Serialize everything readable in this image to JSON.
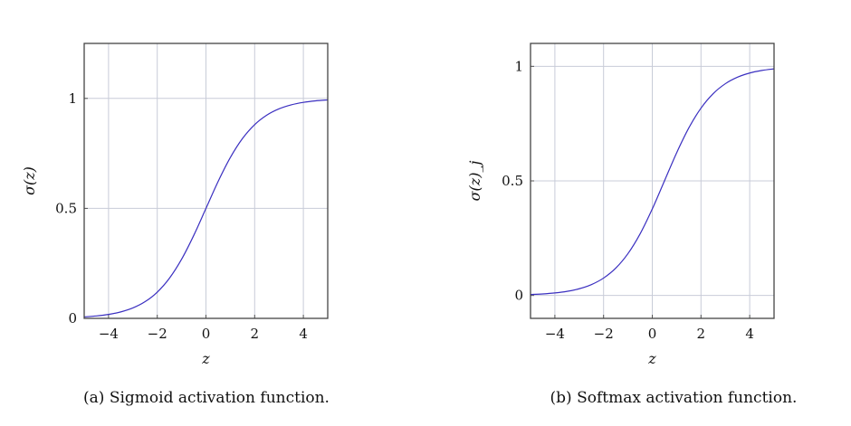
{
  "chart_data": [
    {
      "type": "line",
      "title": "",
      "caption": "(a) Sigmoid activation function.",
      "xlabel": "z",
      "ylabel": "σ(z)",
      "xlim": [
        -5,
        5
      ],
      "ylim": [
        0,
        1.25
      ],
      "xticks": [
        -4,
        -2,
        0,
        2,
        4
      ],
      "xtick_labels": [
        "−4",
        "−2",
        "0",
        "2",
        "4"
      ],
      "yticks": [
        0,
        0.5,
        1
      ],
      "ytick_labels": [
        "0",
        "0.5",
        "1"
      ],
      "grid": true,
      "series": [
        {
          "name": "sigmoid",
          "color": "#3a2fc0",
          "x": [
            -5,
            -4.5,
            -4,
            -3.5,
            -3,
            -2.5,
            -2,
            -1.5,
            -1,
            -0.5,
            0,
            0.5,
            1,
            1.5,
            2,
            2.5,
            3,
            3.5,
            4,
            4.5,
            5
          ],
          "y": [
            0.0067,
            0.011,
            0.018,
            0.0293,
            0.0474,
            0.0759,
            0.1192,
            0.1824,
            0.2689,
            0.3775,
            0.5,
            0.6225,
            0.7311,
            0.8176,
            0.8808,
            0.9241,
            0.9526,
            0.9707,
            0.982,
            0.989,
            0.9933
          ]
        }
      ]
    },
    {
      "type": "line",
      "title": "",
      "caption": "(b) Softmax activation function.",
      "xlabel": "z",
      "ylabel": "σ(z)_j",
      "xlim": [
        -5,
        5
      ],
      "ylim": [
        -0.1,
        1.1
      ],
      "xticks": [
        -4,
        -2,
        0,
        2,
        4
      ],
      "xtick_labels": [
        "−4",
        "−2",
        "0",
        "2",
        "4"
      ],
      "yticks": [
        0,
        0.5,
        1
      ],
      "ytick_labels": [
        "0",
        "0.5",
        "1"
      ],
      "grid": true,
      "series": [
        {
          "name": "softmax",
          "color": "#3a2fc0",
          "x": [
            -5,
            -4.5,
            -4,
            -3.5,
            -3,
            -2.5,
            -2,
            -1.5,
            -1,
            -0.5,
            0,
            0.5,
            1,
            1.5,
            2,
            2.5,
            3,
            3.5,
            4,
            4.5,
            5
          ],
          "y": [
            0.0041,
            0.0067,
            0.011,
            0.018,
            0.0293,
            0.0474,
            0.0759,
            0.1192,
            0.1824,
            0.2689,
            0.3775,
            0.5,
            0.6225,
            0.7311,
            0.8176,
            0.8808,
            0.9241,
            0.9526,
            0.9707,
            0.982,
            0.989
          ]
        }
      ]
    }
  ]
}
